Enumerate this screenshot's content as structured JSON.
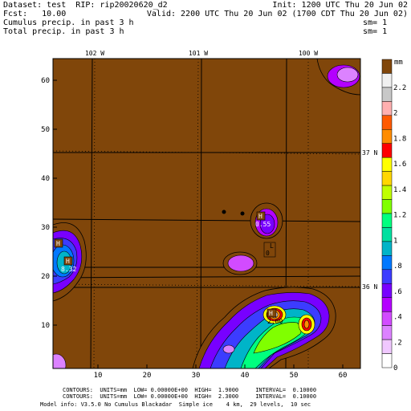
{
  "header": {
    "dataset": "Dataset: test  RIP: rip20020620_d2",
    "init": "Init: 1200 UTC Thu 20 Jun 02",
    "fcst": "Fcst:   10.00",
    "valid": "Valid: 2200 UTC Thu 20 Jun 02 (1700 CDT Thu 20 Jun 02)",
    "field1": "Cumulus precip. in past 3 h",
    "field2": "Total precip. in past 3 h",
    "sm1": "sm= 1",
    "sm2": "sm= 1"
  },
  "map": {
    "longitude_labels": [
      "102 W",
      "101 W",
      "100 W"
    ],
    "latitude_labels": [
      "37 N",
      "36 N"
    ],
    "x_ticks": [
      "10",
      "20",
      "30",
      "40",
      "50",
      "60"
    ],
    "y_ticks": [
      "10",
      "20",
      "30",
      "40",
      "50",
      "60"
    ],
    "high_labels": [
      {
        "mark": "H",
        "value": "8.32"
      },
      {
        "mark": "H",
        "value": "0.55"
      },
      {
        "mark": "H",
        "value": "0.15"
      },
      {
        "mark": "H",
        "value": "2.00"
      }
    ],
    "low_labels": [
      {
        "mark": "L",
        "value": "0"
      }
    ]
  },
  "colorbar": {
    "units": "mm",
    "labels": [
      "2.2",
      "2",
      "1.8",
      "1.6",
      "1.4",
      "1.2",
      "1",
      ".8",
      ".6",
      ".4",
      ".2",
      "0"
    ],
    "colors": [
      "#80460a",
      "#f0f0f0",
      "#c8c8c8",
      "#ffb0b0",
      "#ff5a00",
      "#ff8c00",
      "#ff0000",
      "#ffff00",
      "#ffd700",
      "#c0ff00",
      "#80ff00",
      "#00ff7f",
      "#00e0a0",
      "#00b4c8",
      "#0078ff",
      "#3c3cff",
      "#7800ff",
      "#b400ff",
      "#d24bff",
      "#dc82ff",
      "#f0c8ff",
      "#ffffff"
    ]
  },
  "footer": {
    "line1": "CONTOURS:  UNITS=mm  LOW= 0.00000E+00  HIGH=  1.9000     INTERVAL=  0.10000",
    "line2": "CONTOURS:  UNITS=mm  LOW= 0.00000E+00  HIGH=  2.3000     INTERVAL=  0.10000",
    "line3": "Model info: V3.5.0 No Cumulus Blackadar  Simple ice    4 km,  29 levels,  10 sec"
  }
}
